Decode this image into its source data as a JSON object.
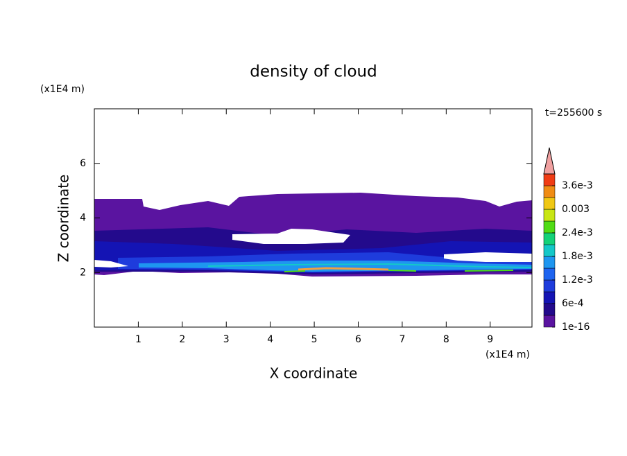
{
  "chart_data": {
    "type": "contour",
    "title": "density of cloud",
    "x_label": "X coordinate",
    "y_label": "Z coordinate",
    "x_unit": "(x1E4 m)",
    "y_unit": "(x1E4 m)",
    "time_label": "t=255600 s",
    "xlim": [
      0,
      9.95
    ],
    "xticks": [
      1,
      2,
      3,
      4,
      5,
      6,
      7,
      8,
      9
    ],
    "ylim": [
      0,
      8
    ],
    "yticks": [
      2,
      4,
      6
    ],
    "colorbar": {
      "levels": [
        1e-16,
        0.0003,
        0.0006,
        0.0009,
        0.0012,
        0.0015,
        0.0018,
        0.0021,
        0.0024,
        0.0027,
        0.003,
        0.0033,
        0.0036,
        0.0039
      ],
      "colors": [
        "#5a14a0",
        "#230a8c",
        "#1414b4",
        "#1e3cdc",
        "#1e64f0",
        "#1e96f0",
        "#14c8c8",
        "#14d278",
        "#50dc14",
        "#c8e614",
        "#f0c814",
        "#f08c14",
        "#f03c14"
      ],
      "extend_color": "#f0a0a0",
      "ticks": [
        {
          "value": 1e-16,
          "label": "1e-16"
        },
        {
          "value": 0.0006,
          "label": "6e-4"
        },
        {
          "value": 0.0012,
          "label": "1.2e-3"
        },
        {
          "value": 0.0018,
          "label": "1.8e-3"
        },
        {
          "value": 0.0024,
          "label": "2.4e-3"
        },
        0.003,
        {
          "value": 0.0036,
          "label": "3.6e-3"
        }
      ]
    }
  }
}
